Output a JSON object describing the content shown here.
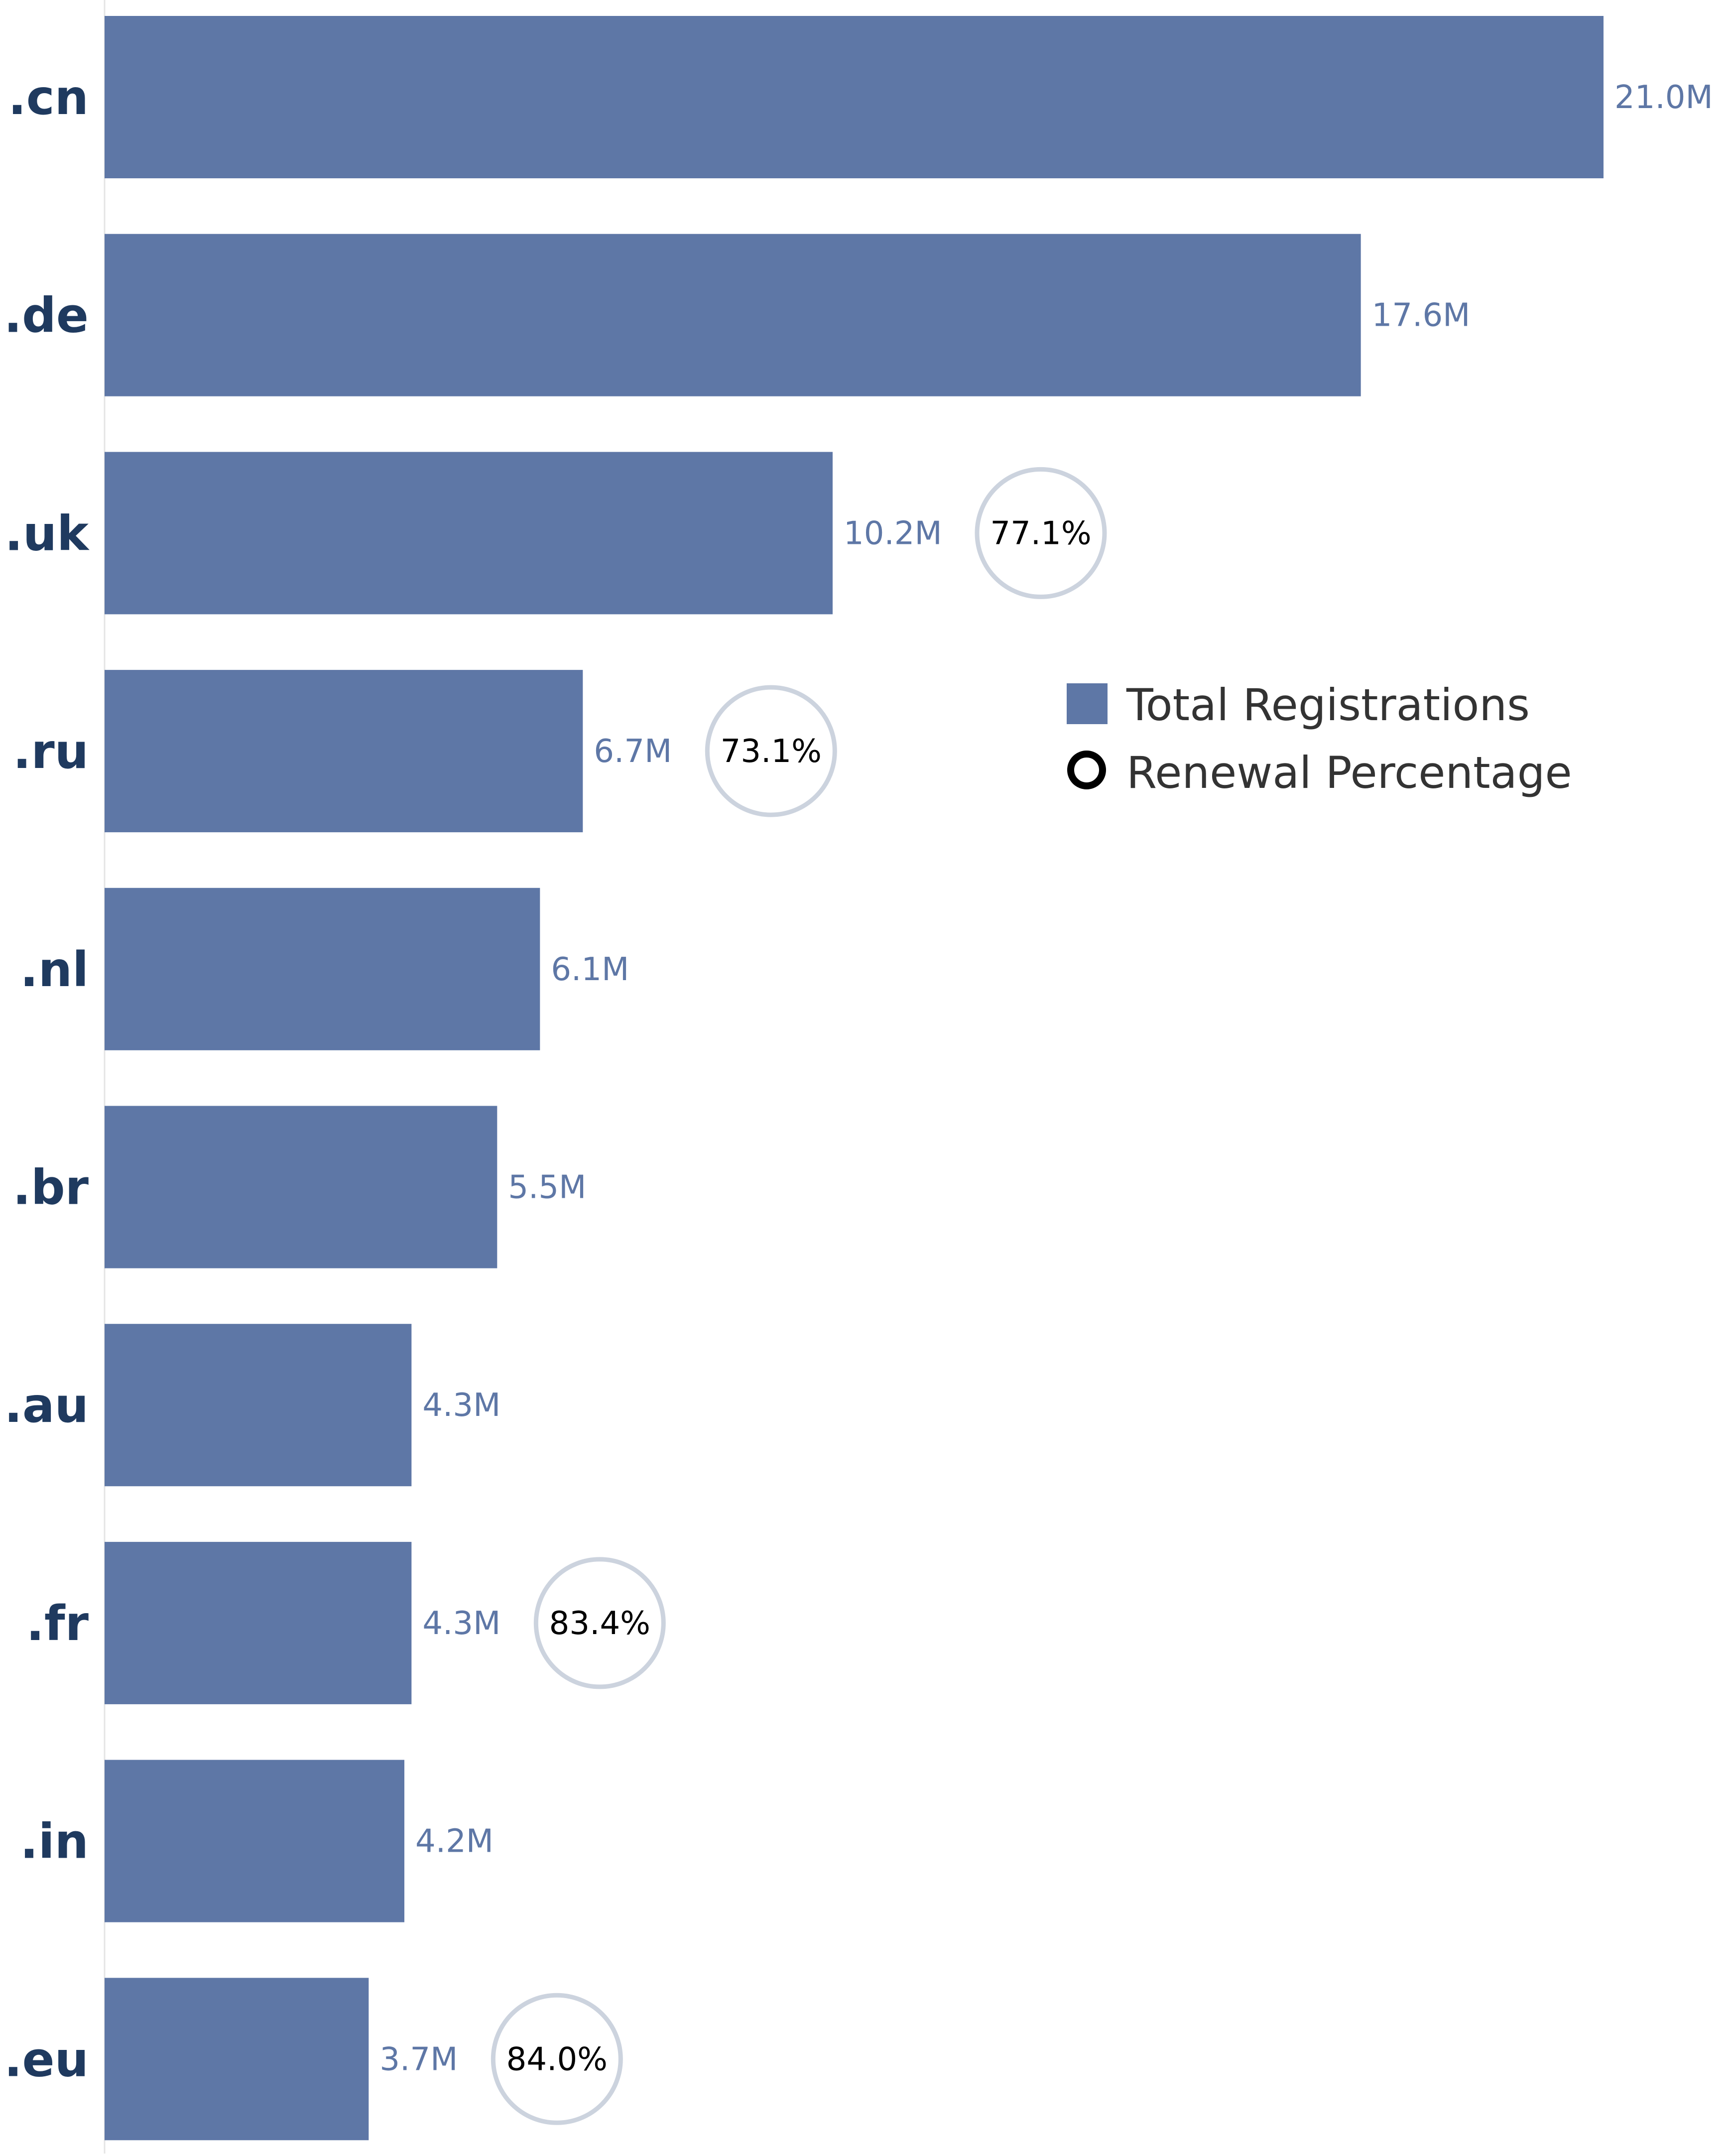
{
  "colors": {
    "bar": "#5e77a6",
    "value_label": "#5e77a6",
    "category_label": "#1f3a5f",
    "circle_stroke": "#ccd3de",
    "axis_line": "#e4e4e4"
  },
  "chart_data": {
    "type": "bar",
    "orientation": "horizontal",
    "title": "",
    "xlabel": "",
    "ylabel": "",
    "grid": false,
    "legend_position": "right",
    "legend": [
      {
        "label": "Total Registrations",
        "symbol": "square"
      },
      {
        "label": "Renewal Percentage",
        "symbol": "circle"
      }
    ],
    "categories": [
      ".cn",
      ".de",
      ".uk",
      ".ru",
      ".nl",
      ".br",
      ".au",
      ".fr",
      ".in",
      ".eu"
    ],
    "series": [
      {
        "name": "Total Registrations",
        "values": [
          21.0,
          17.6,
          10.2,
          6.7,
          6.1,
          5.5,
          4.3,
          4.3,
          4.2,
          3.7
        ],
        "labels": [
          "21.0M",
          "17.6M",
          "10.2M",
          "6.7M",
          "6.1M",
          "5.5M",
          "4.3M",
          "4.3M",
          "4.2M",
          "3.7M"
        ]
      },
      {
        "name": "Renewal Percentage",
        "values": [
          null,
          null,
          77.1,
          73.1,
          null,
          null,
          null,
          83.4,
          null,
          84.0
        ],
        "labels": [
          "",
          "",
          "77.1%",
          "73.1%",
          "",
          "",
          "",
          "83.4%",
          "",
          "84.0%"
        ]
      }
    ],
    "xlim": [
      0,
      21.0
    ]
  }
}
